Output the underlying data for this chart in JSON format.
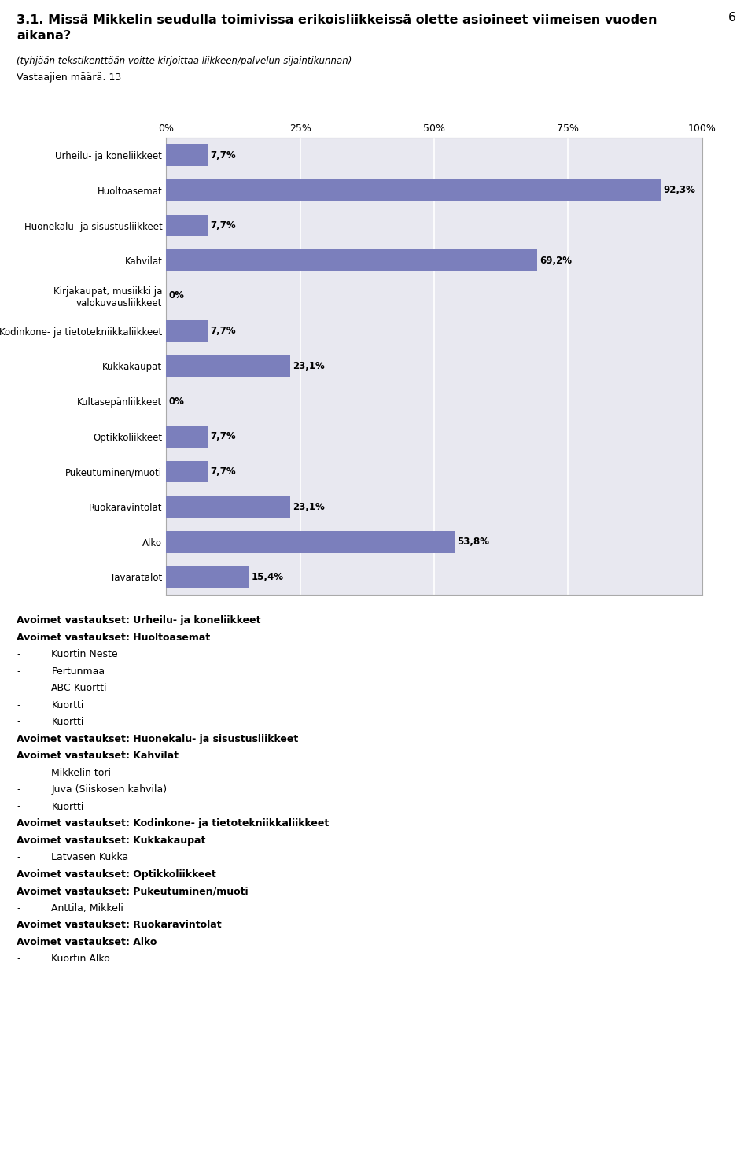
{
  "page_number": "6",
  "title": "3.1. Missä Mikkelin seudulla toimivissa erikoisliikkeissä olette asioineet viimeisen vuoden\naikana?",
  "subtitle": "(tyhjään tekstikenttään voitte kirjoittaa liikkeen/palvelun sijaintikunnan)",
  "vastaajat": "Vastaajien määrä: 13",
  "categories": [
    "Urheilu- ja koneliikkeet",
    "Huoltoasemat",
    "Huonekalu- ja sisustusliikkeet",
    "Kahvilat",
    "Kirjakaupat, musiikki ja\nvalokuvausliikkeet",
    "Kodinkone- ja tietotekniikkaliikkeet",
    "Kukkakaupat",
    "Kultasepänliikkeet",
    "Optikkoliikkeet",
    "Pukeutuminen/muoti",
    "Ruokaravintolat",
    "Alko",
    "Tavaratalot"
  ],
  "values": [
    7.7,
    92.3,
    7.7,
    69.2,
    0.0,
    7.7,
    23.1,
    0.0,
    7.7,
    7.7,
    23.1,
    53.8,
    15.4
  ],
  "bar_color": "#7b7fbc",
  "background_color": "#e8e8f0",
  "text_color": "#000000",
  "xlabel_ticks": [
    "0%",
    "25%",
    "50%",
    "75%",
    "100%"
  ],
  "xlabel_vals": [
    0,
    25,
    50,
    75,
    100
  ],
  "open_answers": [
    {
      "bold": true,
      "indent": false,
      "text": "Avoimet vastaukset: Urheilu- ja koneliikkeet"
    },
    {
      "bold": true,
      "indent": false,
      "text": "Avoimet vastaukset: Huoltoasemat"
    },
    {
      "bold": false,
      "indent": true,
      "text": "Kuortin Neste"
    },
    {
      "bold": false,
      "indent": true,
      "text": "Pertunmaa"
    },
    {
      "bold": false,
      "indent": true,
      "text": "ABC-Kuortti"
    },
    {
      "bold": false,
      "indent": true,
      "text": "Kuortti"
    },
    {
      "bold": false,
      "indent": true,
      "text": "Kuortti"
    },
    {
      "bold": true,
      "indent": false,
      "text": "Avoimet vastaukset: Huonekalu- ja sisustusliikkeet"
    },
    {
      "bold": true,
      "indent": false,
      "text": "Avoimet vastaukset: Kahvilat"
    },
    {
      "bold": false,
      "indent": true,
      "text": "Mikkelin tori"
    },
    {
      "bold": false,
      "indent": true,
      "text": "Juva (Siiskosen kahvila)"
    },
    {
      "bold": false,
      "indent": true,
      "text": "Kuortti"
    },
    {
      "bold": true,
      "indent": false,
      "text": "Avoimet vastaukset: Kodinkone- ja tietotekniikkaliikkeet"
    },
    {
      "bold": true,
      "indent": false,
      "text": "Avoimet vastaukset: Kukkakaupat"
    },
    {
      "bold": false,
      "indent": true,
      "text": "Latvasen Kukka"
    },
    {
      "bold": true,
      "indent": false,
      "text": "Avoimet vastaukset: Optikkoliikkeet"
    },
    {
      "bold": true,
      "indent": false,
      "text": "Avoimet vastaukset: Pukeutuminen/muoti"
    },
    {
      "bold": false,
      "indent": true,
      "text": "Anttila, Mikkeli"
    },
    {
      "bold": true,
      "indent": false,
      "text": "Avoimet vastaukset: Ruokaravintolat"
    },
    {
      "bold": true,
      "indent": false,
      "text": "Avoimet vastaukset: Alko"
    },
    {
      "bold": false,
      "indent": true,
      "text": "Kuortin Alko"
    }
  ]
}
